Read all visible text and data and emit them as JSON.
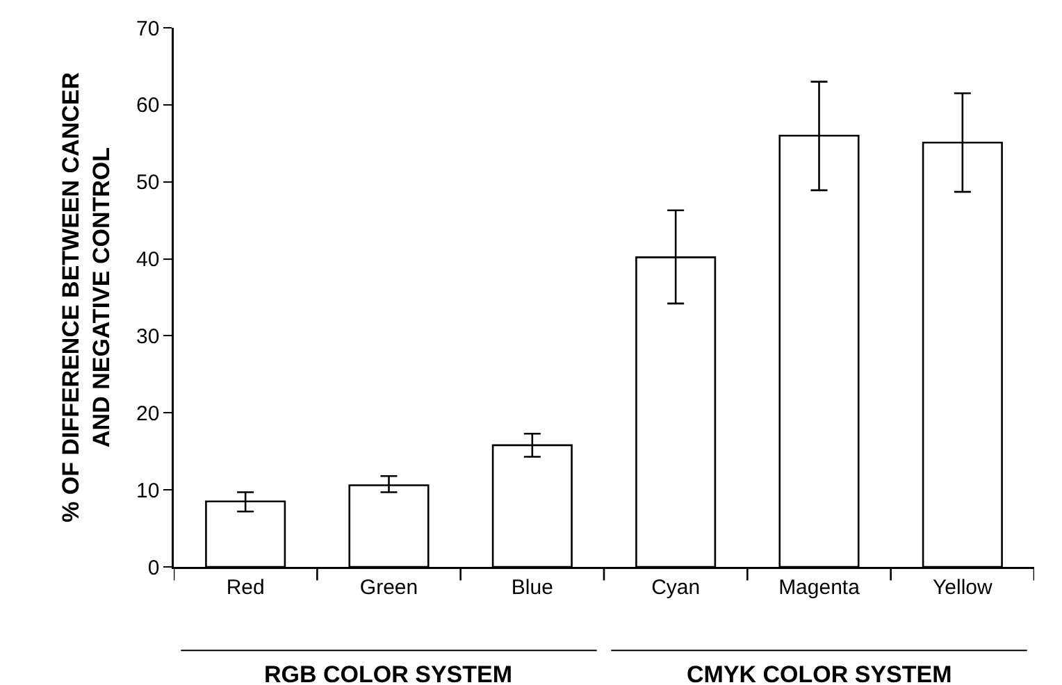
{
  "chart_data": {
    "type": "bar",
    "ylabel": "% OF DIFFERENCE BETWEEN CANCER\nAND NEGATIVE CONTROL",
    "categories": [
      "Red",
      "Green",
      "Blue",
      "Cyan",
      "Magenta",
      "Yellow"
    ],
    "values": [
      8.5,
      10.6,
      15.8,
      40.2,
      56.0,
      55.1
    ],
    "errors": [
      [
        7.2,
        9.7
      ],
      [
        9.7,
        11.8
      ],
      [
        14.3,
        17.3
      ],
      [
        34.2,
        46.3
      ],
      [
        48.9,
        63.0
      ],
      [
        48.7,
        61.5
      ]
    ],
    "color": "#ffffff",
    "ylim": [
      0,
      70
    ],
    "yticks": [
      0,
      10,
      20,
      30,
      40,
      50,
      60,
      70
    ],
    "grid": false,
    "annotations": [
      "RGB COLOR SYSTEM",
      "CMYK COLOR SYSTEM"
    ]
  }
}
